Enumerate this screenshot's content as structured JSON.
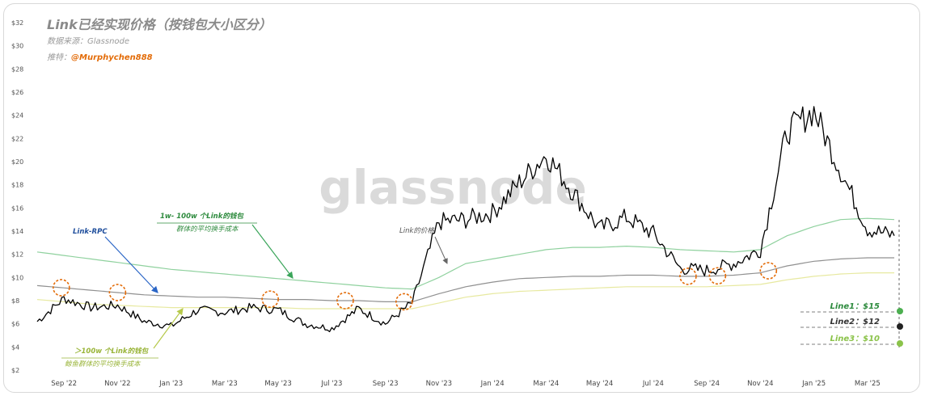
{
  "header": {
    "title": "Link已经实现价格（按钱包大小区分）",
    "source": "数据来源：Glassnode",
    "twitter_prefix": "推特：",
    "twitter_handle": "@Murphychen888"
  },
  "watermark": "glassnode",
  "colors": {
    "price": "#000000",
    "rpc": "#909090",
    "mid": "#8fd19e",
    "whale": "#e7e9a0",
    "circle": "#e36c09",
    "line1": "#4caf50",
    "line2": "#222222",
    "line3": "#8bc34a"
  },
  "annotations": {
    "rpc_label": "Link-RPC",
    "mid_label_1": "1w- 100w 个Link的钱包",
    "mid_label_2": "群体的平均换手成本",
    "whale_label_1": "＞100w 个Link的钱包",
    "whale_label_2": "鲸鱼群体的平均换手成本",
    "price_label": "Link的价格"
  },
  "levels": [
    {
      "label": "Line1：$15",
      "value": 15
    },
    {
      "label": "Line2：$12",
      "value": 12
    },
    {
      "label": "Line3：$10",
      "value": 10
    }
  ],
  "chart_data": {
    "type": "line",
    "title": "Link已经实现价格（按钱包大小区分）",
    "ylim": [
      2,
      32
    ],
    "yticks": [
      "$2",
      "$4",
      "$6",
      "$8",
      "$10",
      "$12",
      "$14",
      "$16",
      "$18",
      "$20",
      "$22",
      "$24",
      "$26",
      "$28",
      "$30",
      "$32"
    ],
    "xticks": [
      "Sep '22",
      "Nov '22",
      "Jan '23",
      "Mar '23",
      "May '23",
      "Jul '23",
      "Sep '23",
      "Nov '23",
      "Jan '24",
      "Mar '24",
      "May '24",
      "Jul '24",
      "Sep '24",
      "Nov '24",
      "Jan '25",
      "Mar '25"
    ],
    "x": [
      "2022-08",
      "2022-09",
      "2022-10",
      "2022-11",
      "2022-12",
      "2023-01",
      "2023-02",
      "2023-03",
      "2023-04",
      "2023-05",
      "2023-06",
      "2023-07",
      "2023-08",
      "2023-09",
      "2023-10",
      "2023-11",
      "2023-12",
      "2024-01",
      "2024-02",
      "2024-03",
      "2024-04",
      "2024-05",
      "2024-06",
      "2024-07",
      "2024-08",
      "2024-09",
      "2024-10",
      "2024-11",
      "2024-12",
      "2025-01",
      "2025-02",
      "2025-03",
      "2025-04"
    ],
    "series": [
      {
        "name": "Link的价格",
        "values": [
          6.2,
          8.2,
          7.4,
          7.6,
          6.2,
          5.8,
          7.2,
          7.0,
          7.4,
          7.2,
          6.0,
          5.6,
          7.3,
          6.0,
          7.8,
          14.8,
          15.0,
          15.6,
          18.2,
          20.6,
          17.4,
          14.2,
          15.2,
          13.8,
          10.8,
          10.6,
          11.2,
          12.4,
          22.6,
          24.4,
          19.2,
          14.2,
          13.6
        ]
      },
      {
        "name": "Link-RPC",
        "values": [
          9.3,
          9.1,
          8.9,
          8.7,
          8.5,
          8.4,
          8.3,
          8.3,
          8.2,
          8.1,
          8.1,
          8.0,
          8.0,
          7.9,
          7.9,
          8.6,
          9.2,
          9.6,
          9.9,
          10.0,
          10.1,
          10.1,
          10.2,
          10.2,
          10.1,
          10.1,
          10.2,
          10.4,
          11.0,
          11.4,
          11.6,
          11.7,
          11.7
        ]
      },
      {
        "name": "1w- 100w 个Link的钱包群体的平均换手成本",
        "values": [
          12.2,
          11.9,
          11.6,
          11.3,
          11.0,
          10.7,
          10.5,
          10.3,
          10.1,
          9.9,
          9.7,
          9.5,
          9.3,
          9.1,
          9.0,
          10.0,
          11.2,
          11.6,
          12.0,
          12.4,
          12.6,
          12.6,
          12.7,
          12.6,
          12.4,
          12.3,
          12.2,
          12.4,
          13.6,
          14.4,
          15.0,
          15.1,
          15.0
        ]
      },
      {
        "name": "鲸鱼群体的平均换手成本",
        "values": [
          8.1,
          7.9,
          7.7,
          7.6,
          7.5,
          7.4,
          7.4,
          7.4,
          7.4,
          7.4,
          7.3,
          7.3,
          7.3,
          7.3,
          7.3,
          7.8,
          8.3,
          8.6,
          8.8,
          8.9,
          9.0,
          9.1,
          9.2,
          9.2,
          9.2,
          9.2,
          9.3,
          9.4,
          9.8,
          10.1,
          10.3,
          10.4,
          10.4
        ]
      }
    ]
  }
}
